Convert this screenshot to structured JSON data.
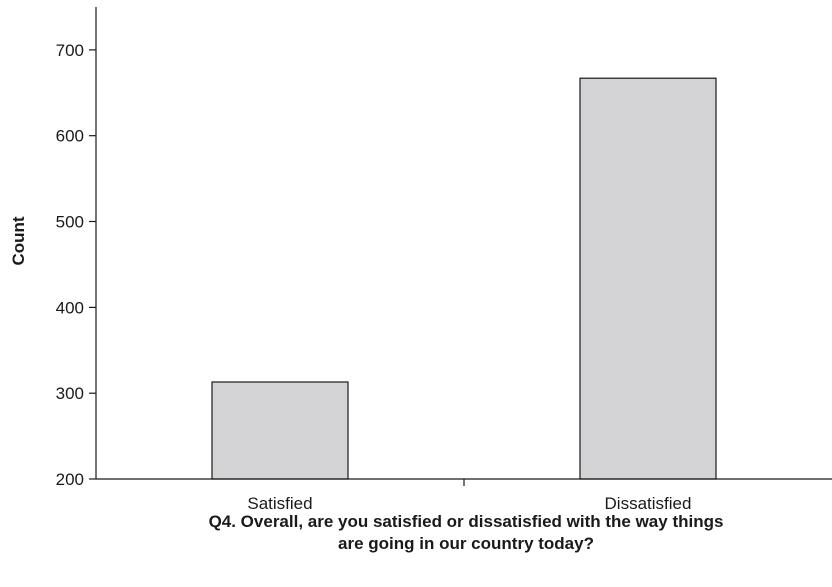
{
  "chart_data": {
    "type": "bar",
    "categories": [
      "Satisfied",
      "Dissatisfied"
    ],
    "values": [
      313,
      667
    ],
    "ylim": [
      200,
      750
    ],
    "yticks": [
      200,
      300,
      400,
      500,
      600,
      700
    ],
    "ylabel": "Count",
    "xlabel_lines": [
      "Q4. Overall, are you satisfied or dissatisfied with the way things",
      "are going in our country today?"
    ],
    "grid": false,
    "colors": {
      "bar_fill": "#d4d4d6",
      "bar_stroke": "#1a1a1a",
      "axis": "#1a1a1a"
    }
  }
}
